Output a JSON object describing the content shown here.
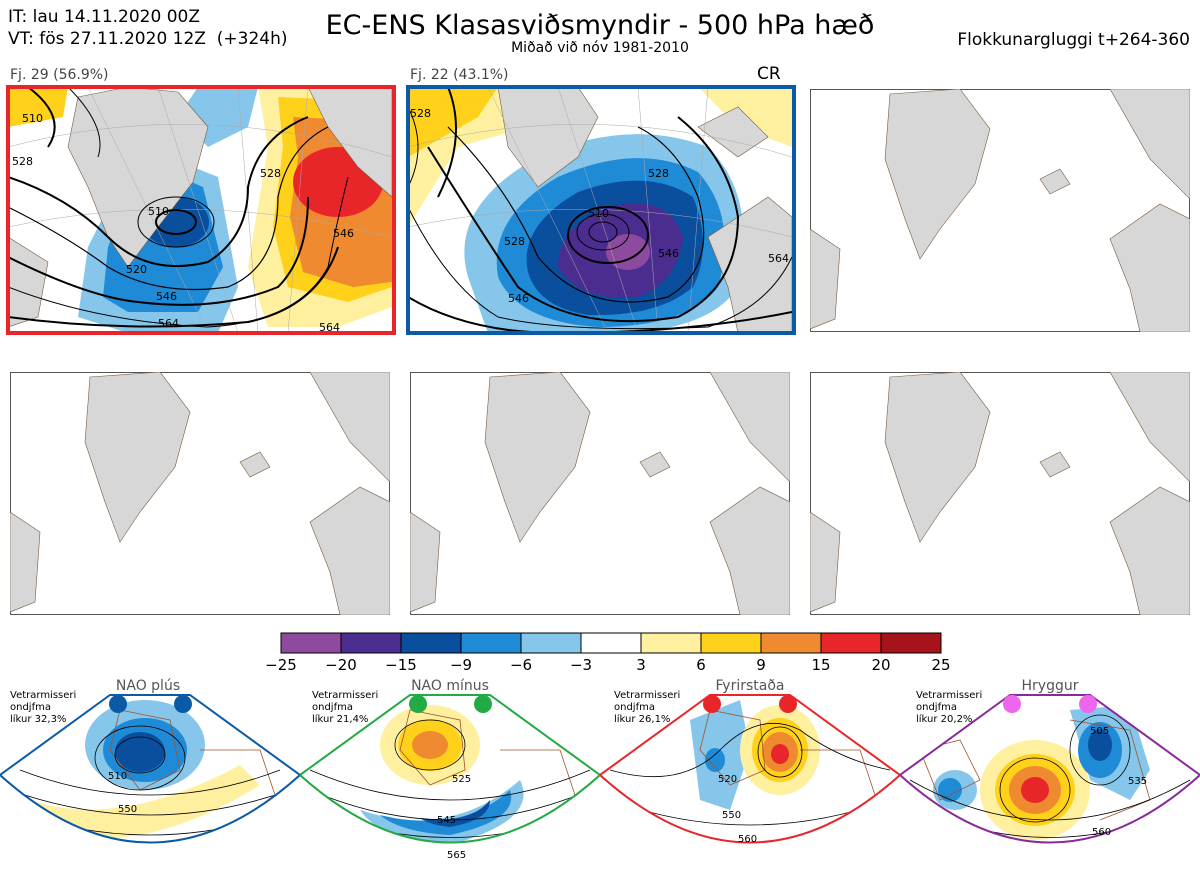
{
  "header": {
    "line1": "IT: lau 14.11.2020 00Z",
    "line2_date": "VT: fös 27.11.2020 12Z",
    "line2_lead": "(+324h)",
    "title": "EC-ENS Klasasviðsmyndir - 500 hPa hæð",
    "subtitle": "Miðað við nóv 1981-2010",
    "window": "Flokkunargluggi t+264-360"
  },
  "panels": [
    {
      "label": "Fj. 29 (56.9%)",
      "frame_color": "#e8262a",
      "tag": ""
    },
    {
      "label": "Fj. 22 (43.1%)",
      "frame_color": "#0a5aa6",
      "tag": "CR"
    }
  ],
  "panel1_contours": [
    "510",
    "520",
    "528",
    "546",
    "564",
    "546",
    "564",
    "510",
    "528"
  ],
  "panel2_contours": [
    "528",
    "510",
    "528",
    "546",
    "564",
    "546",
    "528"
  ],
  "colorbar": {
    "colors": [
      "#8e4a9e",
      "#4a2d8f",
      "#0a4e9e",
      "#1f8ad6",
      "#85c6ea",
      "#ffffff",
      "#fff0a0",
      "#ffd11a",
      "#f08a30",
      "#e8262a",
      "#a5141a"
    ],
    "labels": [
      "−25",
      "−20",
      "−15",
      "−9",
      "−6",
      "−3",
      "3",
      "6",
      "9",
      "15",
      "20",
      "25"
    ]
  },
  "regimes": [
    {
      "name": "NAO plús",
      "info1": "Vetrarmisseri",
      "info2": "ondjfma",
      "info3": "líkur 32,3%",
      "color": "#0a5aa6",
      "contours": [
        "510",
        "550"
      ]
    },
    {
      "name": "NAO mínus",
      "info1": "Vetrarmisseri",
      "info2": "ondjfma",
      "info3": "líkur 21,4%",
      "color": "#22aa44",
      "contours": [
        "525",
        "545",
        "565"
      ]
    },
    {
      "name": "Fyrirstaða",
      "info1": "Vetrarmisseri",
      "info2": "ondjfma",
      "info3": "líkur 26,1%",
      "color": "#e8262a",
      "contours": [
        "520",
        "550",
        "560"
      ]
    },
    {
      "name": "Hryggur",
      "info1": "Vetrarmisseri",
      "info2": "ondjfma",
      "info3": "líkur 20,2%",
      "color": "#8a2a9a",
      "contours": [
        "505",
        "535",
        "560"
      ]
    }
  ]
}
